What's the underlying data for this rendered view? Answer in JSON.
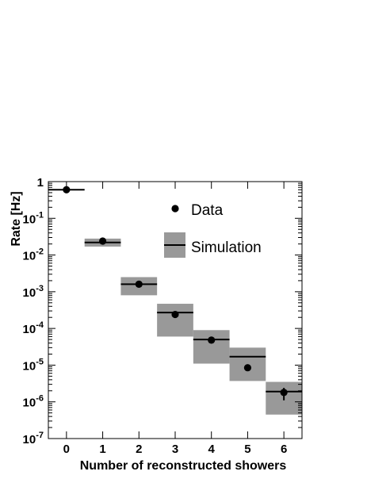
{
  "chart_data": {
    "type": "scatter",
    "xlabel": "Number of reconstructed showers",
    "ylabel": "Rate [Hz]",
    "y_scale": "log",
    "xlim": [
      -0.5,
      6.5
    ],
    "ylim": [
      1e-07,
      1
    ],
    "x_ticks": [
      0,
      1,
      2,
      3,
      4,
      5,
      6
    ],
    "x_tick_labels": [
      "0",
      "1",
      "2",
      "3",
      "4",
      "5",
      "6"
    ],
    "y_ticks": [
      {
        "value": 1e-07,
        "base": "10",
        "exp": "-7"
      },
      {
        "value": 1e-06,
        "base": "10",
        "exp": "-6"
      },
      {
        "value": 1e-05,
        "base": "10",
        "exp": "-5"
      },
      {
        "value": 0.0001,
        "base": "10",
        "exp": "-4"
      },
      {
        "value": 0.001,
        "base": "10",
        "exp": "-3"
      },
      {
        "value": 0.01,
        "base": "10",
        "exp": "-2"
      },
      {
        "value": 0.1,
        "base": "10",
        "exp": "-1"
      },
      {
        "value": 1,
        "base": "1",
        "exp": ""
      }
    ],
    "grid": false,
    "legend_position": "top-right",
    "legend": [
      {
        "name": "Data",
        "marker": "dot"
      },
      {
        "name": "Simulation",
        "marker": "band-line"
      }
    ],
    "series": [
      {
        "name": "Data",
        "x": [
          0,
          1,
          2,
          3,
          4,
          5,
          6
        ],
        "y": [
          0.6,
          0.024,
          0.0016,
          0.00024,
          4.8e-05,
          8.5e-06,
          1.8e-06
        ],
        "y_err_low": [
          null,
          null,
          null,
          null,
          null,
          null,
          1.1e-06
        ],
        "y_err_high": [
          null,
          null,
          null,
          null,
          null,
          null,
          2.4e-06
        ]
      },
      {
        "name": "Simulation",
        "x": [
          0,
          1,
          2,
          3,
          4,
          5,
          6
        ],
        "y": [
          0.6,
          0.022,
          0.0016,
          0.00027,
          5e-05,
          1.7e-05,
          1.9e-06
        ],
        "band_low": [
          null,
          0.017,
          0.0008,
          6e-05,
          1.1e-05,
          3.7e-06,
          4.5e-07
        ],
        "band_high": [
          null,
          0.028,
          0.0025,
          0.00047,
          9e-05,
          3e-05,
          3.5e-06
        ]
      }
    ],
    "colors": {
      "band": "#999999",
      "line": "#000000",
      "marker": "#000000"
    }
  }
}
